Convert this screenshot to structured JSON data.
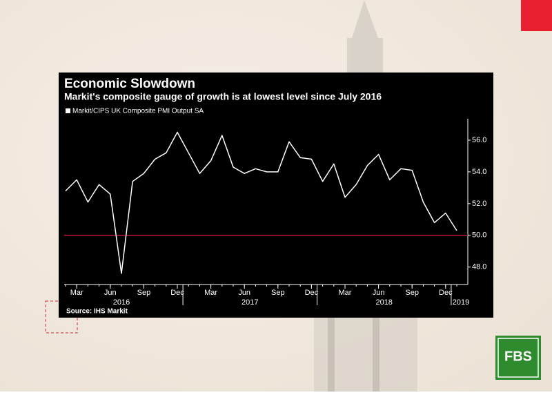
{
  "chart_data": {
    "type": "line",
    "title": "Economic Slowdown",
    "subtitle": "Markit's composite gauge of growth is at lowest level since July 2016",
    "source": "Source: IHS Markit",
    "brand": "FBS",
    "x": [
      "2016-02",
      "2016-03",
      "2016-04",
      "2016-05",
      "2016-06",
      "2016-07",
      "2016-08",
      "2016-09",
      "2016-10",
      "2016-11",
      "2016-12",
      "2017-01",
      "2017-02",
      "2017-03",
      "2017-04",
      "2017-05",
      "2017-06",
      "2017-07",
      "2017-08",
      "2017-09",
      "2017-10",
      "2017-11",
      "2017-12",
      "2018-01",
      "2018-02",
      "2018-03",
      "2018-04",
      "2018-05",
      "2018-06",
      "2018-07",
      "2018-08",
      "2018-09",
      "2018-10",
      "2018-11",
      "2018-12",
      "2019-01"
    ],
    "series": [
      {
        "name": "Markit/CIPS UK Composite PMI Output SA",
        "color": "#ffffff",
        "values": [
          52.8,
          53.5,
          52.1,
          53.2,
          52.6,
          47.6,
          53.4,
          53.9,
          54.8,
          55.2,
          56.5,
          55.2,
          53.9,
          54.7,
          56.3,
          54.3,
          53.9,
          54.2,
          54.0,
          54.0,
          55.9,
          54.9,
          54.8,
          53.4,
          54.5,
          52.4,
          53.2,
          54.4,
          55.1,
          53.5,
          54.2,
          54.1,
          52.1,
          50.8,
          51.4,
          50.3
        ]
      }
    ],
    "ylim": [
      46.9,
      57
    ],
    "yticks": [
      {
        "value": 48,
        "label": "48.0"
      },
      {
        "value": 50,
        "label": "50.0"
      },
      {
        "value": 52,
        "label": "52.0"
      },
      {
        "value": 54,
        "label": "54.0"
      },
      {
        "value": 56,
        "label": "56.0"
      }
    ],
    "xticks": [
      {
        "value": "2016-03",
        "label": "Mar"
      },
      {
        "value": "2016-06",
        "label": "Jun"
      },
      {
        "value": "2016-09",
        "label": "Sep"
      },
      {
        "value": "2016-12",
        "label": "Dec"
      },
      {
        "value": "2017-03",
        "label": "Mar"
      },
      {
        "value": "2017-06",
        "label": "Jun"
      },
      {
        "value": "2017-09",
        "label": "Sep"
      },
      {
        "value": "2017-12",
        "label": "Dec"
      },
      {
        "value": "2018-03",
        "label": "Mar"
      },
      {
        "value": "2018-06",
        "label": "Jun"
      },
      {
        "value": "2018-09",
        "label": "Sep"
      },
      {
        "value": "2018-12",
        "label": "Dec"
      }
    ],
    "year_labels": [
      "2016",
      "2017",
      "2018",
      "2019"
    ],
    "reference_line": {
      "value": 50,
      "color": "#c0143c"
    },
    "y_axis_side": "right",
    "legend": "top-left"
  }
}
